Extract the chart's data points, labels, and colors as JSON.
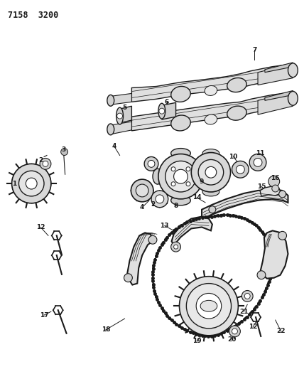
{
  "title": "7158  3200",
  "bg_color": "#ffffff",
  "line_color": "#1a1a1a",
  "label_color": "#1a1a1a",
  "fig_width": 4.28,
  "fig_height": 5.33,
  "dpi": 100
}
